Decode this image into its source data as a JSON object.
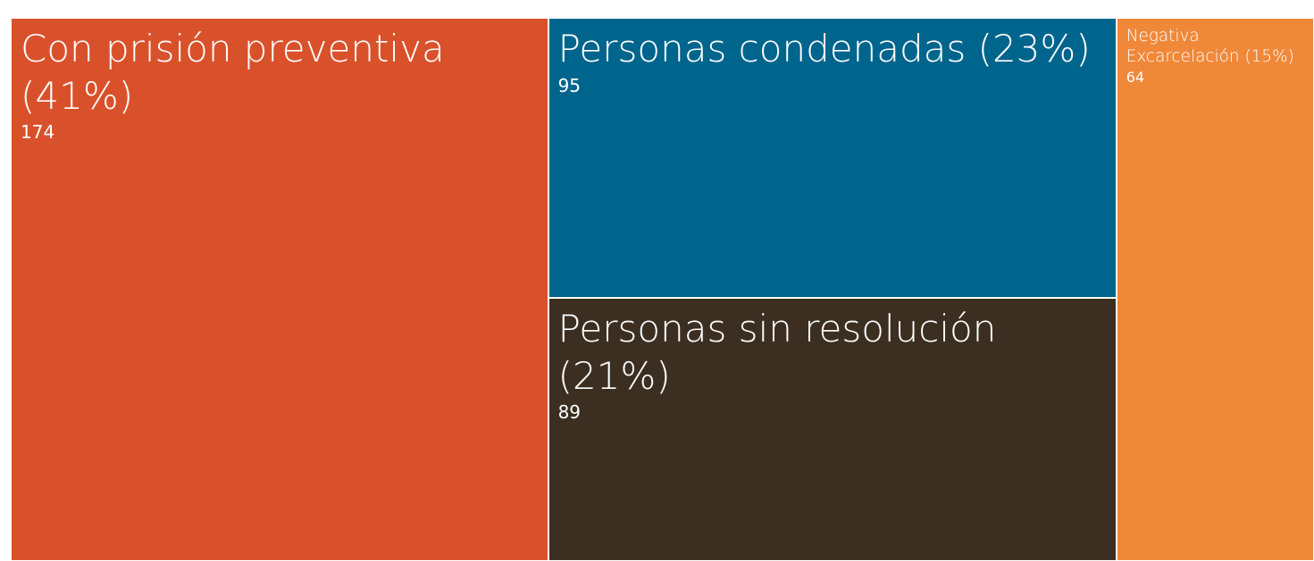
{
  "chart_data": {
    "type": "treemap",
    "categories": [
      "Con prisión preventiva (41%)",
      "Personas condenadas (23%)",
      "Personas sin resolución (21%)",
      "Negativa Excarcelación (15%)"
    ],
    "values": [
      174,
      95,
      89,
      64
    ],
    "colors": [
      "#d9512b",
      "#00658d",
      "#3c2f22",
      "#f0883a"
    ]
  }
}
